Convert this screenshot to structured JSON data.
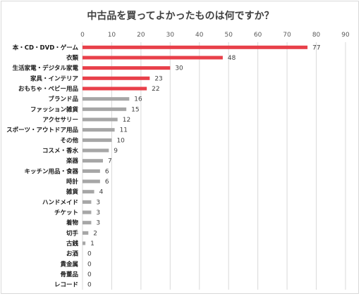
{
  "chart_data": {
    "type": "bar",
    "orientation": "horizontal",
    "title": "中古品を買ってよかったものは何ですか？",
    "xlabel": "",
    "ylabel": "",
    "xlim": [
      0,
      90
    ],
    "xticks": [
      0,
      10,
      20,
      30,
      40,
      50,
      60,
      70,
      80,
      90
    ],
    "grid": true,
    "legend": "none",
    "highlight_color": "#e8404a",
    "base_color": "#a6a6a6",
    "highlight_count": 5,
    "categories": [
      "本・CD・DVD・ゲーム",
      "衣類",
      "生活家電・デジタル家電",
      "家具・インテリア",
      "おもちゃ・ベビー用品",
      "ブランド品",
      "ファッション雑貨",
      "アクセサリー",
      "スポーツ・アウトドア用品",
      "その他",
      "コスメ・香水",
      "楽器",
      "キッチン用品・食器",
      "時計",
      "雑貨",
      "ハンドメイド",
      "チケット",
      "着物",
      "切手",
      "古銭",
      "お酒",
      "貴金属",
      "骨董品",
      "レコード"
    ],
    "values": [
      77,
      48,
      30,
      23,
      22,
      16,
      15,
      12,
      11,
      10,
      9,
      7,
      6,
      6,
      4,
      3,
      3,
      3,
      2,
      1,
      0,
      0,
      0,
      0
    ]
  }
}
